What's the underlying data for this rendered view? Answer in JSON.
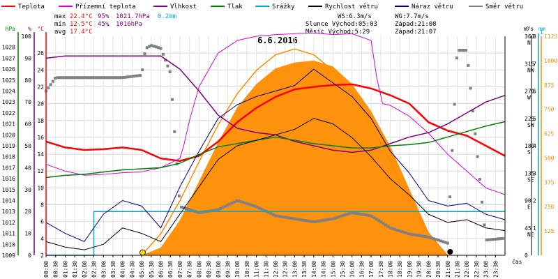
{
  "chart_data": {
    "type": "line",
    "title": "6.6.2016",
    "xlabel": "čas",
    "x_ticks": [
      "00:00",
      "00:30",
      "01:00",
      "01:30",
      "02:00",
      "02:30",
      "03:00",
      "03:30",
      "04:00",
      "04:30",
      "05:00",
      "05:30",
      "06:00",
      "06:30",
      "07:00",
      "07:30",
      "08:00",
      "08:30",
      "09:00",
      "09:30",
      "10:00",
      "10:30",
      "11:00",
      "11:30",
      "12:00",
      "12:30",
      "13:00",
      "13:30",
      "14:00",
      "14:30",
      "15:00",
      "15:30",
      "16:00",
      "16:30",
      "17:00",
      "17:30",
      "18:00",
      "18:30",
      "19:00",
      "19:30",
      "20:00",
      "20:30",
      "21:00",
      "21:30",
      "22:00",
      "22:30",
      "23:00",
      "23:30"
    ],
    "axes": {
      "hPa": {
        "label": "hPa",
        "range": [
          1009,
          1029
        ],
        "ticks": [
          "1009",
          "1010",
          "1011",
          "1012",
          "1013",
          "1014",
          "1015",
          "1016",
          "1017",
          "1018",
          "1019",
          "1020",
          "1021",
          "1022",
          "1023",
          "1024",
          "1025",
          "1026",
          "1027",
          "1028"
        ],
        "color": "#008000"
      },
      "pct": {
        "label": "%",
        "range": [
          0,
          100
        ],
        "ticks": [
          "0",
          "10",
          "20",
          "30",
          "40",
          "50",
          "60",
          "70",
          "80",
          "90",
          "100"
        ],
        "color": "#800080"
      },
      "temp": {
        "label": "°C",
        "range": [
          2,
          28
        ],
        "ticks": [
          "2",
          "4",
          "6",
          "8",
          "10",
          "12",
          "14",
          "16",
          "18",
          "20",
          "22",
          "24",
          "26"
        ],
        "color": "#ff0000"
      },
      "dir": {
        "label": "°",
        "range": [
          0,
          360
        ],
        "ticks": [
          {
            "v": "360",
            "l": "N"
          },
          {
            "v": "315",
            "l": "NW"
          },
          {
            "v": "270",
            "l": "W"
          },
          {
            "v": "225",
            "l": "SW"
          },
          {
            "v": "180",
            "l": "S"
          },
          {
            "v": "135",
            "l": "SE"
          },
          {
            "v": "90",
            "l": "E"
          },
          {
            "v": "45",
            "l": "NE"
          },
          {
            "v": "0",
            "l": ""
          }
        ]
      },
      "ms": {
        "label": "m/s",
        "range": [
          0,
          8
        ],
        "ticks": [
          "1",
          "2",
          "3",
          "4",
          "5",
          "6",
          "7",
          "8"
        ]
      },
      "mm": {
        "label": "mm",
        "range": [
          0,
          1
        ],
        "ticks": [
          "1"
        ],
        "color": "#00aacc"
      },
      "wm2": {
        "label": "",
        "range": [
          0,
          1125
        ],
        "ticks": [
          "125",
          "250",
          "375",
          "500",
          "625",
          "750",
          "875",
          "1000",
          "1125"
        ],
        "color": "#ff8c00"
      }
    },
    "legend": [
      {
        "name": "Teplota",
        "color": "#ff0000"
      },
      {
        "name": "Přízemní teplota",
        "color": "#dd00dd"
      },
      {
        "name": "Vlhkost",
        "color": "#800080"
      },
      {
        "name": "Tlak",
        "color": "#008000"
      },
      {
        "name": "Srážky",
        "color": "#00aacc"
      },
      {
        "name": "Rychlost větru",
        "color": "#000000"
      },
      {
        "name": "Náraz větru",
        "color": "#000080"
      },
      {
        "name": "Směr větru",
        "color": "#808080"
      }
    ],
    "stats": {
      "max": {
        "label": "max",
        "temp": "22.4°C",
        "hum": "95%",
        "press": "1021.7hPa",
        "rain": "0.2mm"
      },
      "min": {
        "label": "min",
        "temp": "12.5°C",
        "hum": "45%",
        "press": "1016hPa"
      },
      "avg": {
        "label": "avg",
        "temp": "17.4°C"
      }
    },
    "info": {
      "ws": "WS:6.3m/s",
      "wg": "WG:7.7m/s",
      "sun": "Slunce Východ:05:03",
      "sun_set": "Západ:21:08",
      "moon": "Měsíc Východ:5:29",
      "moon_set": "Západ:21:07"
    },
    "series": [
      {
        "name": "Teplota",
        "axis": "temp",
        "x": [
          0,
          1,
          2,
          3,
          4,
          5,
          6,
          7,
          8,
          9,
          10,
          11,
          12,
          13,
          14,
          15,
          16,
          17,
          18,
          19,
          20,
          21,
          22,
          23,
          24
        ],
        "values": [
          15.5,
          14.8,
          14.5,
          14.6,
          14.8,
          14.5,
          13.5,
          13.2,
          13.8,
          15.5,
          17.8,
          19.5,
          20.8,
          21.7,
          22.0,
          22.2,
          22.3,
          21.8,
          21.0,
          20.0,
          17.8,
          16.8,
          16.2,
          15.0,
          13.8
        ]
      },
      {
        "name": "Přízemní teplota",
        "axis": "temp",
        "x": [
          0,
          1,
          2,
          3,
          4,
          5,
          6,
          7,
          7.2,
          7.5,
          8,
          9,
          10,
          11,
          12,
          13,
          14,
          15,
          16,
          17,
          17.3,
          17.6,
          18,
          19,
          20,
          21,
          22,
          23,
          24
        ],
        "values": [
          12.8,
          12.0,
          11.5,
          11.6,
          11.8,
          11.9,
          12.4,
          13.5,
          15,
          18,
          22,
          26,
          27.5,
          28,
          28.2,
          28.3,
          28.4,
          28.2,
          28.3,
          27.5,
          23,
          20,
          19.8,
          18.5,
          16.5,
          14.0,
          12.0,
          10.0,
          9.2
        ]
      },
      {
        "name": "Vlhkost",
        "axis": "pct",
        "x": [
          0,
          1,
          2,
          3,
          4,
          5,
          6,
          7,
          8,
          9,
          10,
          11,
          12,
          13,
          14,
          15,
          16,
          17,
          18,
          19,
          20,
          21,
          22,
          23,
          24
        ],
        "values": [
          90,
          91,
          91,
          91,
          91,
          91,
          91,
          85,
          75,
          64,
          58,
          56,
          55,
          52,
          50,
          48,
          47,
          48,
          51,
          54,
          56,
          60,
          65,
          70,
          73
        ]
      },
      {
        "name": "Tlak",
        "axis": "hPa",
        "x": [
          0,
          1,
          2,
          3,
          4,
          5,
          6,
          7,
          8,
          9,
          10,
          11,
          12,
          13,
          14,
          15,
          16,
          17,
          18,
          19,
          20,
          21,
          22,
          23,
          24
        ],
        "values": [
          1016.1,
          1016.3,
          1016.4,
          1016.6,
          1016.8,
          1016.9,
          1017.0,
          1017.4,
          1018.2,
          1018.9,
          1019.2,
          1019.5,
          1019.8,
          1019.5,
          1019.2,
          1019.0,
          1018.8,
          1018.8,
          1019.0,
          1019.1,
          1019.3,
          1019.8,
          1020.3,
          1020.8,
          1021.2
        ]
      },
      {
        "name": "Srážky",
        "axis": "mm",
        "x": [
          0,
          2.5,
          2.5,
          24
        ],
        "values": [
          0,
          0,
          0.2,
          0.2
        ]
      },
      {
        "name": "Rychlost větru",
        "axis": "ms",
        "x": [
          0,
          1,
          2,
          3,
          4,
          5,
          6,
          7,
          8,
          9,
          10,
          11,
          12,
          13,
          14,
          15,
          16,
          17,
          18,
          19,
          20,
          21,
          22,
          23,
          24
        ],
        "values": [
          0.5,
          0.3,
          0.2,
          0.4,
          1.0,
          0.8,
          0.5,
          1.5,
          2.5,
          3.5,
          4.0,
          4.2,
          4.4,
          4.6,
          5.0,
          4.8,
          4.3,
          3.6,
          2.8,
          2.2,
          1.5,
          1.2,
          1.3,
          1.0,
          0.9
        ]
      },
      {
        "name": "Náraz větru",
        "axis": "ms",
        "x": [
          0,
          1,
          2,
          3,
          4,
          5,
          6,
          7,
          8,
          9,
          10,
          11,
          12,
          13,
          14,
          15,
          16,
          17,
          18,
          19,
          20,
          21,
          22,
          23,
          24
        ],
        "values": [
          1.2,
          0.8,
          0.5,
          1.5,
          2.0,
          1.8,
          1.0,
          2.5,
          3.8,
          5.0,
          5.5,
          5.8,
          6.0,
          6.2,
          6.8,
          6.3,
          5.8,
          5.0,
          3.8,
          3.0,
          2.0,
          1.8,
          1.9,
          1.5,
          1.3
        ]
      },
      {
        "name": "Směr větru",
        "axis": "dir",
        "x": [
          0,
          0.5,
          1,
          2,
          3,
          4,
          5,
          5.2,
          5.5,
          6,
          6.5,
          7,
          8,
          9,
          10,
          11,
          12,
          13,
          14,
          15,
          16,
          17,
          18,
          19,
          20,
          21,
          21.5,
          22,
          23,
          24
        ],
        "values": [
          270,
          292,
          292,
          292,
          292,
          292,
          296,
          340,
          345,
          340,
          300,
          80,
          70,
          75,
          90,
          80,
          65,
          60,
          55,
          60,
          70,
          65,
          45,
          35,
          30,
          20,
          337,
          337,
          25,
          28
        ]
      }
    ],
    "radiation": {
      "name": "Sluneční záření",
      "axis": "wm2",
      "color": "#ff8c00",
      "x": [
        5,
        6,
        7,
        8,
        9,
        10,
        11,
        12,
        13,
        14,
        15,
        16,
        17,
        18,
        19,
        20,
        21
      ],
      "values": [
        0,
        40,
        180,
        380,
        580,
        760,
        880,
        960,
        990,
        1000,
        970,
        880,
        740,
        560,
        340,
        120,
        0
      ]
    },
    "radiation_theoretical": {
      "color": "#ff8c00",
      "x": [
        5,
        6,
        7,
        8,
        9,
        10,
        11,
        12,
        13,
        14,
        15,
        16,
        17,
        18,
        19,
        20,
        21
      ],
      "values": [
        0,
        110,
        280,
        480,
        670,
        830,
        950,
        1030,
        1060,
        1030,
        950,
        830,
        670,
        480,
        280,
        110,
        0
      ]
    }
  }
}
